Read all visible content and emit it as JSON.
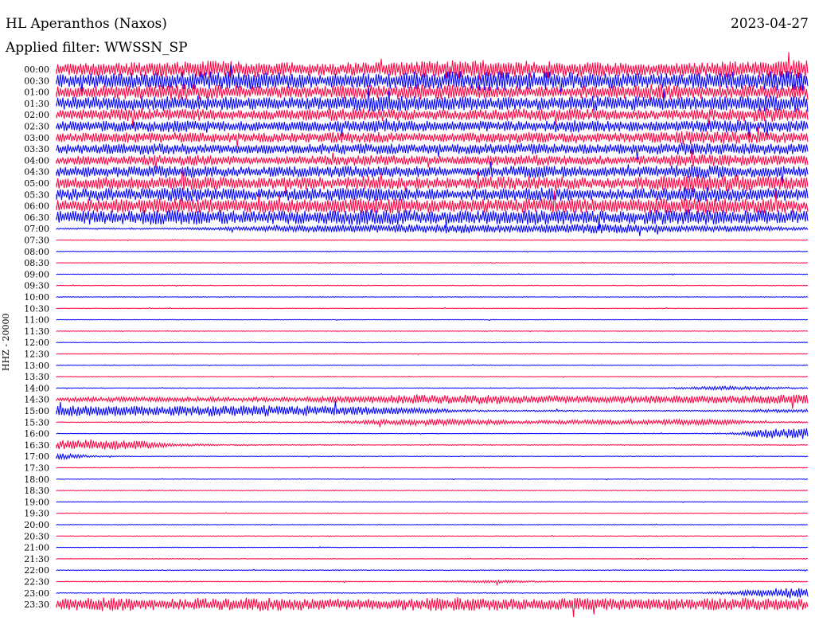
{
  "header": {
    "title": "HL Aperanthos (Naxos)",
    "date": "2023-04-27",
    "filter": "Applied filter: WWSSN_SP",
    "channel": "HHZ - 20000"
  },
  "colors": {
    "odd_row": "#0000ff",
    "even_row": "#ff0040"
  },
  "chart_data": {
    "type": "line",
    "title": "HL Aperanthos (Naxos)",
    "subtitle": "Applied filter: WWSSN_SP",
    "ylabel": "HHZ - 20000",
    "xlabel": "",
    "grid": false,
    "row_duration_minutes": 30,
    "tick_labels": [
      "00:00",
      "00:30",
      "01:00",
      "01:30",
      "02:00",
      "02:30",
      "03:00",
      "03:30",
      "04:00",
      "04:30",
      "05:00",
      "05:30",
      "06:00",
      "06:30",
      "07:00",
      "07:30",
      "08:00",
      "08:30",
      "09:00",
      "09:30",
      "10:00",
      "10:30",
      "11:00",
      "11:30",
      "12:00",
      "12:30",
      "13:00",
      "13:30",
      "14:00",
      "14:30",
      "15:00",
      "15:30",
      "16:00",
      "16:30",
      "17:00",
      "17:30",
      "18:00",
      "18:30",
      "19:00",
      "19:30",
      "20:00",
      "20:30",
      "21:00",
      "21:30",
      "22:00",
      "22:30",
      "23:00",
      "23:30"
    ],
    "series": [
      {
        "color": "#ff0040",
        "amplitude": [
          7,
          8,
          9,
          10,
          11,
          10,
          9,
          8,
          9,
          10,
          11,
          12,
          11,
          10,
          9,
          8,
          9,
          10,
          11,
          12
        ]
      },
      {
        "color": "#0000ff",
        "amplitude": [
          8,
          9,
          10,
          11,
          12,
          11,
          10,
          9,
          10,
          11,
          12,
          13,
          12,
          11,
          10,
          9,
          10,
          11,
          12,
          13
        ]
      },
      {
        "color": "#ff0040",
        "amplitude": [
          7,
          8,
          9,
          10,
          9,
          8,
          7,
          8,
          9,
          10,
          9,
          8,
          7,
          8,
          9,
          10,
          9,
          8,
          9,
          10
        ]
      },
      {
        "color": "#0000ff",
        "amplitude": [
          8,
          9,
          9,
          10,
          9,
          8,
          8,
          9,
          10,
          10,
          9,
          8,
          8,
          9,
          10,
          9,
          8,
          9,
          10,
          11
        ]
      },
      {
        "color": "#ff0040",
        "amplitude": [
          6,
          7,
          8,
          8,
          7,
          6,
          7,
          8,
          8,
          7,
          6,
          7,
          8,
          8,
          7,
          6,
          7,
          8,
          9,
          8
        ]
      },
      {
        "color": "#0000ff",
        "amplitude": [
          6,
          7,
          7,
          8,
          7,
          6,
          6,
          7,
          8,
          7,
          6,
          7,
          7,
          8,
          7,
          6,
          7,
          8,
          8,
          7
        ]
      },
      {
        "color": "#ff0040",
        "amplitude": [
          6,
          6,
          7,
          7,
          6,
          6,
          6,
          7,
          7,
          6,
          6,
          7,
          7,
          6,
          6,
          7,
          9,
          8,
          7,
          7
        ]
      },
      {
        "color": "#0000ff",
        "amplitude": [
          6,
          6,
          7,
          7,
          6,
          6,
          6,
          7,
          7,
          6,
          6,
          7,
          7,
          6,
          6,
          7,
          8,
          7,
          7,
          7
        ]
      },
      {
        "color": "#ff0040",
        "amplitude": [
          5,
          6,
          6,
          7,
          6,
          5,
          6,
          6,
          7,
          6,
          5,
          6,
          7,
          6,
          5,
          6,
          8,
          7,
          6,
          6
        ]
      },
      {
        "color": "#0000ff",
        "amplitude": [
          6,
          7,
          7,
          8,
          7,
          6,
          7,
          7,
          8,
          7,
          6,
          7,
          8,
          7,
          6,
          7,
          9,
          8,
          7,
          7
        ]
      },
      {
        "color": "#ff0040",
        "amplitude": [
          7,
          8,
          8,
          9,
          8,
          7,
          8,
          8,
          9,
          8,
          7,
          8,
          9,
          8,
          7,
          8,
          12,
          11,
          9,
          8
        ]
      },
      {
        "color": "#0000ff",
        "amplitude": [
          7,
          8,
          8,
          9,
          8,
          7,
          8,
          8,
          9,
          8,
          7,
          8,
          9,
          8,
          7,
          8,
          10,
          9,
          8,
          8
        ]
      },
      {
        "color": "#ff0040",
        "amplitude": [
          8,
          9,
          9,
          10,
          9,
          8,
          9,
          9,
          10,
          9,
          8,
          9,
          10,
          9,
          8,
          9,
          11,
          10,
          9,
          9
        ]
      },
      {
        "color": "#0000ff",
        "amplitude": [
          8,
          9,
          9,
          10,
          9,
          8,
          9,
          9,
          10,
          9,
          8,
          9,
          10,
          9,
          8,
          9,
          10,
          9,
          9,
          9
        ]
      },
      {
        "color": "#0000ff",
        "amplitude": [
          1,
          1,
          1,
          1,
          2,
          3,
          4,
          5,
          5,
          6,
          6,
          5,
          5,
          6,
          6,
          5,
          4,
          4,
          3,
          2
        ]
      },
      {
        "color": "#ff0040",
        "amplitude": [
          0.4,
          0.4,
          0.4,
          0.5,
          0.4,
          0.4,
          0.4,
          0.5,
          0.4,
          0.4,
          0.4,
          0.5,
          0.4,
          0.4,
          0.4,
          0.5,
          0.4,
          0.4,
          0.4,
          0.5
        ]
      },
      {
        "color": "#0000ff",
        "amplitude": [
          0.4,
          0.4,
          0.4,
          0.5,
          0.4,
          0.4,
          0.4,
          0.5,
          0.4,
          0.4,
          0.4,
          0.5,
          0.4,
          0.4,
          0.4,
          0.5,
          0.4,
          0.4,
          0.4,
          0.5
        ]
      },
      {
        "color": "#ff0040",
        "amplitude": [
          0.4,
          0.4,
          0.4,
          0.5,
          0.4,
          0.4,
          0.4,
          0.5,
          0.4,
          0.4,
          0.4,
          0.5,
          0.4,
          0.4,
          0.4,
          0.5,
          0.4,
          0.4,
          0.4,
          0.5
        ]
      },
      {
        "color": "#0000ff",
        "amplitude": [
          0.4,
          0.4,
          0.4,
          0.5,
          0.4,
          0.4,
          0.4,
          0.5,
          0.4,
          0.4,
          0.4,
          0.5,
          0.4,
          0.4,
          0.4,
          0.5,
          0.4,
          0.4,
          0.4,
          0.5
        ]
      },
      {
        "color": "#ff0040",
        "amplitude": [
          0.4,
          0.4,
          0.4,
          0.5,
          0.4,
          0.4,
          0.4,
          0.5,
          0.4,
          0.4,
          0.4,
          0.5,
          0.4,
          0.4,
          0.4,
          0.5,
          0.4,
          0.4,
          0.4,
          0.5
        ]
      },
      {
        "color": "#0000ff",
        "amplitude": [
          0.4,
          0.4,
          0.4,
          0.5,
          0.4,
          0.4,
          0.4,
          0.5,
          0.4,
          0.4,
          0.4,
          0.5,
          0.4,
          0.4,
          0.4,
          0.5,
          0.4,
          0.4,
          0.4,
          0.5
        ]
      },
      {
        "color": "#ff0040",
        "amplitude": [
          0.4,
          0.4,
          0.4,
          0.5,
          0.4,
          0.4,
          0.4,
          0.5,
          0.4,
          0.4,
          0.4,
          0.5,
          0.4,
          0.4,
          0.4,
          0.5,
          0.4,
          0.4,
          0.4,
          0.5
        ]
      },
      {
        "color": "#0000ff",
        "amplitude": [
          0.4,
          0.4,
          0.4,
          0.5,
          0.4,
          0.4,
          0.4,
          0.5,
          0.4,
          0.4,
          0.4,
          0.5,
          0.4,
          0.4,
          0.4,
          0.5,
          0.4,
          0.4,
          0.4,
          0.5
        ]
      },
      {
        "color": "#ff0040",
        "amplitude": [
          0.4,
          0.4,
          0.4,
          0.5,
          0.4,
          0.4,
          0.4,
          0.5,
          0.4,
          0.4,
          0.4,
          0.5,
          0.4,
          0.4,
          0.4,
          0.5,
          0.4,
          0.4,
          0.4,
          0.5
        ]
      },
      {
        "color": "#0000ff",
        "amplitude": [
          0.4,
          0.4,
          0.4,
          0.5,
          0.4,
          0.4,
          0.4,
          0.5,
          0.4,
          0.4,
          0.4,
          0.5,
          0.4,
          0.4,
          0.4,
          0.5,
          0.4,
          0.4,
          0.4,
          0.5
        ]
      },
      {
        "color": "#ff0040",
        "amplitude": [
          0.4,
          0.4,
          0.4,
          0.5,
          0.4,
          0.4,
          0.4,
          0.5,
          0.4,
          0.4,
          0.4,
          0.5,
          0.4,
          0.4,
          0.4,
          0.5,
          0.4,
          0.4,
          0.4,
          0.5
        ]
      },
      {
        "color": "#0000ff",
        "amplitude": [
          0.4,
          0.4,
          0.4,
          0.5,
          0.4,
          0.4,
          0.4,
          0.5,
          0.4,
          0.4,
          0.4,
          0.5,
          0.4,
          0.4,
          0.4,
          0.5,
          0.4,
          0.4,
          0.4,
          0.5
        ]
      },
      {
        "color": "#ff0040",
        "amplitude": [
          0.4,
          0.4,
          0.4,
          0.5,
          0.4,
          0.4,
          0.4,
          0.5,
          0.4,
          0.4,
          0.4,
          0.5,
          0.4,
          0.4,
          0.4,
          0.5,
          0.4,
          0.4,
          0.4,
          0.5
        ]
      },
      {
        "color": "#0000ff",
        "amplitude": [
          0.5,
          0.5,
          0.5,
          0.6,
          0.5,
          0.5,
          0.5,
          0.6,
          0.5,
          0.5,
          0.5,
          0.6,
          0.5,
          0.5,
          0.5,
          0.6,
          1.5,
          2.5,
          1.5,
          0.8
        ]
      },
      {
        "color": "#ff0040",
        "amplitude": [
          3,
          3,
          3,
          3,
          3,
          3,
          3,
          4,
          5,
          6,
          6,
          6,
          5,
          5,
          5,
          5,
          5,
          5,
          6,
          6
        ]
      },
      {
        "color": "#0000ff",
        "amplitude": [
          7,
          7,
          6,
          6,
          7,
          7,
          7,
          6,
          5,
          4,
          2,
          1,
          1,
          1,
          0.8,
          0.8,
          0.8,
          1,
          2,
          2
        ]
      },
      {
        "color": "#ff0040",
        "amplitude": [
          0.5,
          0.5,
          0.8,
          0.6,
          0.5,
          0.8,
          0.6,
          1,
          3,
          4,
          4,
          3,
          2,
          3,
          3,
          3,
          4,
          3,
          1,
          1
        ]
      },
      {
        "color": "#0000ff",
        "amplitude": [
          0.4,
          0.4,
          0.4,
          0.5,
          0.4,
          0.4,
          0.4,
          0.5,
          0.4,
          0.4,
          0.4,
          0.5,
          0.4,
          0.4,
          0.4,
          0.5,
          0.4,
          1,
          6,
          7
        ]
      },
      {
        "color": "#ff0040",
        "amplitude": [
          6,
          7,
          6,
          2,
          1,
          0.8,
          0.6,
          0.6,
          0.5,
          0.5,
          0.6,
          0.6,
          0.5,
          0.5,
          0.6,
          0.6,
          0.5,
          0.5,
          0.6,
          0.6
        ]
      },
      {
        "color": "#0000ff",
        "amplitude": [
          4,
          1,
          0.4,
          0.5,
          0.4,
          0.4,
          0.4,
          0.5,
          0.4,
          0.4,
          0.4,
          0.5,
          0.4,
          0.4,
          0.4,
          0.5,
          0.4,
          0.4,
          0.4,
          0.5
        ]
      },
      {
        "color": "#ff0040",
        "amplitude": [
          0.4,
          0.4,
          0.4,
          0.5,
          0.4,
          0.4,
          0.4,
          0.5,
          0.4,
          0.4,
          0.4,
          0.5,
          0.4,
          0.4,
          0.4,
          0.5,
          0.4,
          0.4,
          0.4,
          0.5
        ]
      },
      {
        "color": "#0000ff",
        "amplitude": [
          0.4,
          0.4,
          0.4,
          0.5,
          0.4,
          0.4,
          0.4,
          0.5,
          0.4,
          0.4,
          0.4,
          0.5,
          0.4,
          0.4,
          0.4,
          0.5,
          0.4,
          0.4,
          0.4,
          0.5
        ]
      },
      {
        "color": "#ff0040",
        "amplitude": [
          0.4,
          0.4,
          0.4,
          0.5,
          0.4,
          0.4,
          0.4,
          0.5,
          0.4,
          0.4,
          0.4,
          0.5,
          0.4,
          0.4,
          0.4,
          0.5,
          0.4,
          0.4,
          0.4,
          0.5
        ]
      },
      {
        "color": "#0000ff",
        "amplitude": [
          0.4,
          0.4,
          0.4,
          0.5,
          0.4,
          0.4,
          0.4,
          0.5,
          0.4,
          0.4,
          0.4,
          0.5,
          0.4,
          0.4,
          0.4,
          0.5,
          0.4,
          0.4,
          0.4,
          0.5
        ]
      },
      {
        "color": "#ff0040",
        "amplitude": [
          0.4,
          0.4,
          0.4,
          0.5,
          0.4,
          0.4,
          0.4,
          0.5,
          0.4,
          0.4,
          0.4,
          0.5,
          0.4,
          0.4,
          0.4,
          0.5,
          0.4,
          0.4,
          0.4,
          0.5
        ]
      },
      {
        "color": "#0000ff",
        "amplitude": [
          0.4,
          0.4,
          0.4,
          0.5,
          0.4,
          0.4,
          0.4,
          0.5,
          0.4,
          0.4,
          0.4,
          0.5,
          0.4,
          0.4,
          0.4,
          0.5,
          0.4,
          0.4,
          0.4,
          0.5
        ]
      },
      {
        "color": "#ff0040",
        "amplitude": [
          0.4,
          0.4,
          0.4,
          0.5,
          0.4,
          0.4,
          0.4,
          0.5,
          0.4,
          0.4,
          0.4,
          0.5,
          0.4,
          0.4,
          0.4,
          0.5,
          0.4,
          0.4,
          0.4,
          0.5
        ]
      },
      {
        "color": "#0000ff",
        "amplitude": [
          0.4,
          0.4,
          0.4,
          0.5,
          0.4,
          0.4,
          0.4,
          0.5,
          0.4,
          0.4,
          0.4,
          0.5,
          0.4,
          0.4,
          0.4,
          0.5,
          0.4,
          0.4,
          0.4,
          0.5
        ]
      },
      {
        "color": "#ff0040",
        "amplitude": [
          0.4,
          0.4,
          0.4,
          0.5,
          0.4,
          0.4,
          0.4,
          0.5,
          0.4,
          0.4,
          0.4,
          0.5,
          0.4,
          0.4,
          0.4,
          0.5,
          0.4,
          0.4,
          0.4,
          0.5
        ]
      },
      {
        "color": "#0000ff",
        "amplitude": [
          0.5,
          0.5,
          0.5,
          0.6,
          0.5,
          0.5,
          0.5,
          0.6,
          0.5,
          0.5,
          0.5,
          0.6,
          0.5,
          0.5,
          0.5,
          0.6,
          0.5,
          0.5,
          0.5,
          0.6
        ]
      },
      {
        "color": "#ff0040",
        "amplitude": [
          0.5,
          0.5,
          0.5,
          0.6,
          0.5,
          0.5,
          0.5,
          0.6,
          0.5,
          0.5,
          1,
          2,
          1,
          0.5,
          0.5,
          0.6,
          0.5,
          0.5,
          0.5,
          0.6
        ]
      },
      {
        "color": "#0000ff",
        "amplitude": [
          0.5,
          0.5,
          0.5,
          0.6,
          0.5,
          0.5,
          0.5,
          0.6,
          0.5,
          0.5,
          0.5,
          0.6,
          0.5,
          0.5,
          0.5,
          0.6,
          0.5,
          2,
          6,
          7
        ]
      },
      {
        "color": "#ff0040",
        "amplitude": [
          8,
          9,
          8,
          7,
          8,
          9,
          8,
          7,
          7,
          8,
          9,
          8,
          7,
          8,
          8,
          7,
          7,
          8,
          8,
          7
        ]
      }
    ]
  }
}
